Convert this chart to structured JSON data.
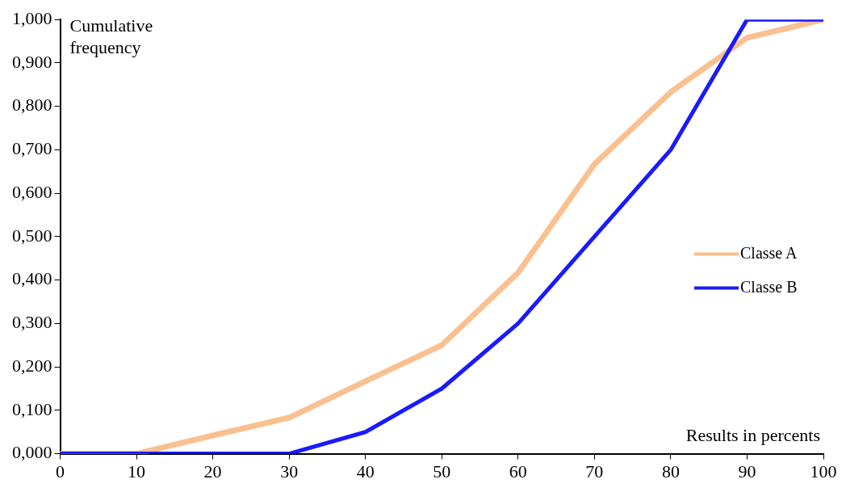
{
  "chart_data": {
    "type": "line",
    "xlabel": "Results in percents",
    "ylabel": "Cumulative frequency",
    "x": [
      0,
      10,
      20,
      30,
      40,
      50,
      60,
      70,
      80,
      90,
      100
    ],
    "series": [
      {
        "name": "Classe A",
        "color": "#fac090",
        "values": [
          0,
          0,
          0.042,
          0.083,
          0.167,
          0.25,
          0.417,
          0.667,
          0.833,
          0.958,
          1
        ]
      },
      {
        "name": "Classe B",
        "color": "#1a1aff",
        "values": [
          0,
          0,
          0,
          0,
          0.05,
          0.15,
          0.3,
          0.5,
          0.7,
          1,
          1
        ]
      }
    ],
    "xlim": [
      0,
      100
    ],
    "xticks": [
      0,
      10,
      20,
      30,
      40,
      50,
      60,
      70,
      80,
      90,
      100
    ],
    "ylim": [
      0,
      1
    ],
    "yticks": [
      {
        "value": 0,
        "label": "0,000"
      },
      {
        "value": 0.1,
        "label": "0,100"
      },
      {
        "value": 0.2,
        "label": "0,200"
      },
      {
        "value": 0.3,
        "label": "0,300"
      },
      {
        "value": 0.4,
        "label": "0,400"
      },
      {
        "value": 0.5,
        "label": "0,500"
      },
      {
        "value": 0.6,
        "label": "0,600"
      },
      {
        "value": 0.7,
        "label": "0,700"
      },
      {
        "value": 0.8,
        "label": "0,800"
      },
      {
        "value": 0.9,
        "label": "0,900"
      },
      {
        "value": 1,
        "label": "1,000"
      }
    ],
    "grid": false,
    "legend": "right",
    "marker": "none",
    "line_style": "solid"
  }
}
